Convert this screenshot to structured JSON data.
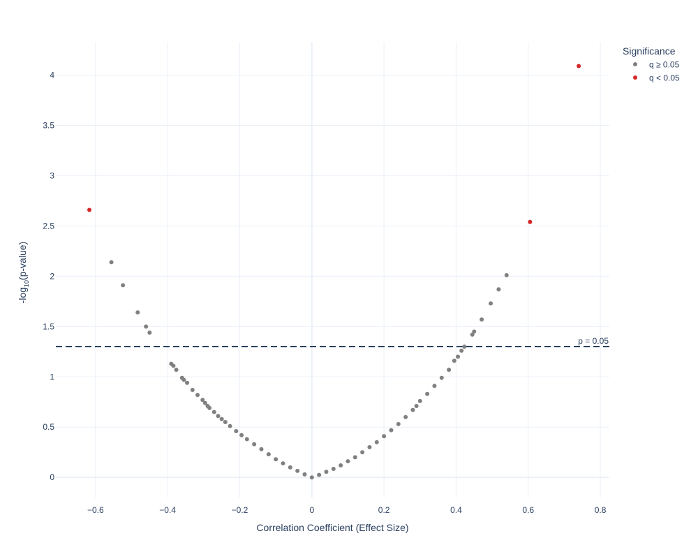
{
  "chart_data": {
    "type": "scatter",
    "title": "",
    "xlabel": "Correlation Coefficient (Effect Size)",
    "ylabel_prefix": "-log",
    "ylabel_sub": "10",
    "ylabel_suffix": "(p-value)",
    "xlim": [
      -0.71,
      0.825
    ],
    "ylim": [
      -0.2,
      4.33
    ],
    "grid": true,
    "x_ticks": [
      -0.6,
      -0.4,
      -0.2,
      0,
      0.2,
      0.4,
      0.6,
      0.8
    ],
    "x_tick_labels": [
      "−0.6",
      "−0.4",
      "−0.2",
      "0",
      "0.2",
      "0.4",
      "0.6",
      "0.8"
    ],
    "y_ticks": [
      0,
      0.5,
      1,
      1.5,
      2,
      2.5,
      3,
      3.5,
      4
    ],
    "y_tick_labels": [
      "0",
      "0.5",
      "1",
      "1.5",
      "2",
      "2.5",
      "3",
      "3.5",
      "4"
    ],
    "threshold": {
      "y": 1.301,
      "label": "p = 0.05",
      "color": "#2a3f5f"
    },
    "legend": {
      "title": "Significance",
      "placement": "top-right",
      "entries": [
        {
          "label": "q ≥ 0.05",
          "color": "#808080"
        },
        {
          "label": "q < 0.05",
          "color": "#d62728"
        }
      ]
    },
    "series": [
      {
        "name": "q ≥ 0.05",
        "color": "#808080",
        "points": [
          [
            -0.556,
            2.14
          ],
          [
            -0.524,
            1.91
          ],
          [
            -0.483,
            1.64
          ],
          [
            -0.46,
            1.5
          ],
          [
            -0.45,
            1.44
          ],
          [
            -0.39,
            1.13
          ],
          [
            -0.384,
            1.11
          ],
          [
            -0.376,
            1.07
          ],
          [
            -0.36,
            0.99
          ],
          [
            -0.355,
            0.97
          ],
          [
            -0.346,
            0.94
          ],
          [
            -0.331,
            0.87
          ],
          [
            -0.317,
            0.82
          ],
          [
            -0.303,
            0.77
          ],
          [
            -0.296,
            0.74
          ],
          [
            -0.289,
            0.71
          ],
          [
            -0.284,
            0.69
          ],
          [
            -0.271,
            0.65
          ],
          [
            -0.26,
            0.61
          ],
          [
            -0.25,
            0.58
          ],
          [
            -0.24,
            0.55
          ],
          [
            -0.227,
            0.51
          ],
          [
            -0.21,
            0.46
          ],
          [
            -0.195,
            0.42
          ],
          [
            -0.18,
            0.38
          ],
          [
            -0.16,
            0.33
          ],
          [
            -0.14,
            0.28
          ],
          [
            -0.12,
            0.23
          ],
          [
            -0.1,
            0.18
          ],
          [
            -0.08,
            0.14
          ],
          [
            -0.06,
            0.1
          ],
          [
            -0.04,
            0.065
          ],
          [
            -0.02,
            0.03
          ],
          [
            0,
            0
          ],
          [
            0.02,
            0.025
          ],
          [
            0.04,
            0.055
          ],
          [
            0.06,
            0.085
          ],
          [
            0.08,
            0.12
          ],
          [
            0.1,
            0.16
          ],
          [
            0.12,
            0.2
          ],
          [
            0.14,
            0.25
          ],
          [
            0.16,
            0.3
          ],
          [
            0.18,
            0.35
          ],
          [
            0.2,
            0.41
          ],
          [
            0.22,
            0.47
          ],
          [
            0.24,
            0.53
          ],
          [
            0.26,
            0.6
          ],
          [
            0.28,
            0.67
          ],
          [
            0.29,
            0.71
          ],
          [
            0.3,
            0.76
          ],
          [
            0.32,
            0.83
          ],
          [
            0.34,
            0.91
          ],
          [
            0.36,
            0.99
          ],
          [
            0.38,
            1.07
          ],
          [
            0.395,
            1.16
          ],
          [
            0.405,
            1.2
          ],
          [
            0.415,
            1.26
          ],
          [
            0.423,
            1.3
          ],
          [
            0.445,
            1.42
          ],
          [
            0.45,
            1.45
          ],
          [
            0.471,
            1.57
          ],
          [
            0.496,
            1.73
          ],
          [
            0.518,
            1.87
          ],
          [
            0.54,
            2.01
          ]
        ]
      },
      {
        "name": "q < 0.05",
        "color": "#d62728",
        "points": [
          [
            -0.617,
            2.66
          ],
          [
            0.605,
            2.54
          ],
          [
            0.74,
            4.09
          ]
        ]
      }
    ]
  }
}
